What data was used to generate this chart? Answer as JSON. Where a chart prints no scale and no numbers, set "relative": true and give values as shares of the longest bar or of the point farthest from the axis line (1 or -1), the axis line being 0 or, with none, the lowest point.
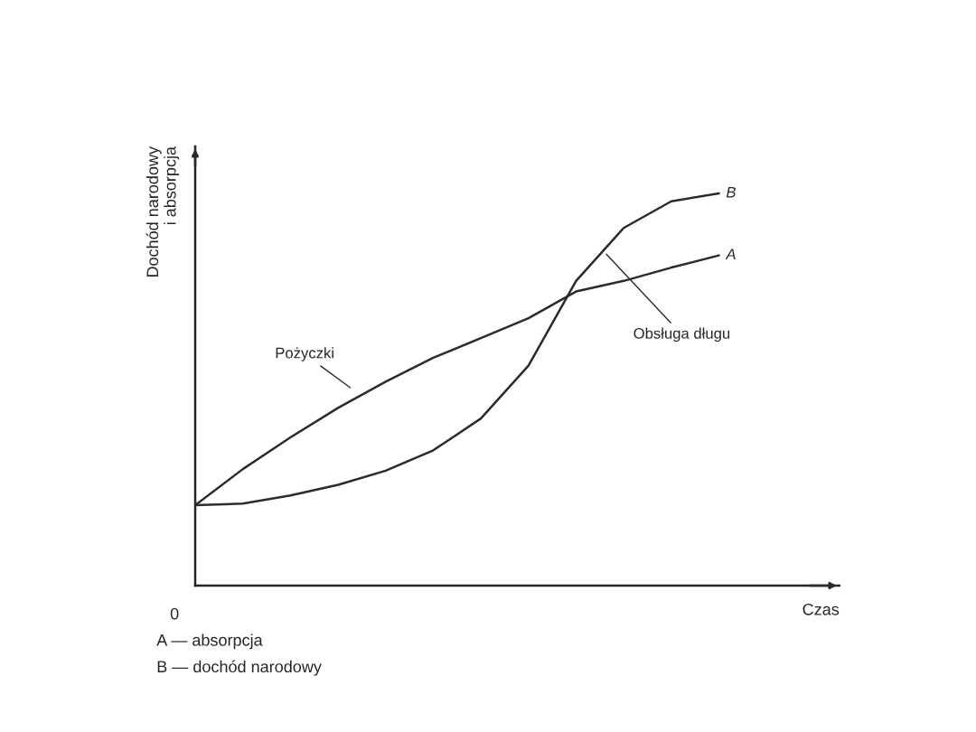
{
  "chart_data": {
    "type": "line",
    "relative": true,
    "xlabel": "Czas",
    "ylabel": "Dochód narodowy\ni absorpcja",
    "categories": [
      null,
      null,
      null,
      null,
      null,
      null,
      null,
      null,
      null,
      null,
      null,
      null
    ],
    "series": [
      {
        "name": "A",
        "color": "#2b2b2b",
        "values": [
          0.205,
          0.297,
          0.378,
          0.453,
          0.52,
          0.581,
          0.631,
          0.682,
          0.75,
          0.777,
          0.811,
          0.842
        ]
      },
      {
        "name": "B",
        "color": "#2b2b2b",
        "values": [
          0.205,
          0.209,
          0.23,
          0.257,
          0.293,
          0.345,
          0.426,
          0.561,
          0.777,
          0.912,
          0.98,
          1.0
        ]
      }
    ],
    "annotations": [
      "Pożyczki",
      "Obsługa długu",
      "0",
      "A — absorpcja",
      "B — dochód narodowy"
    ],
    "legend": false,
    "marker": "none",
    "line_style": "solid"
  }
}
